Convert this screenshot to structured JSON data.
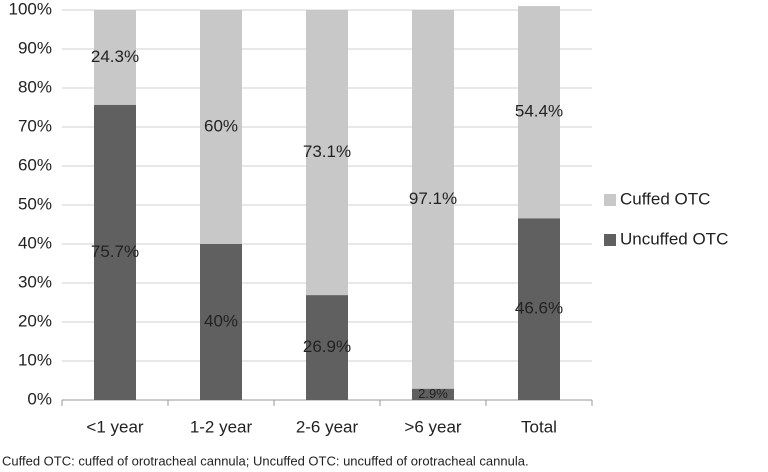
{
  "chart_data": {
    "type": "stacked_bar",
    "categories": [
      "<1 year",
      "1-2 year",
      "2-6 year",
      ">6 year",
      "Total"
    ],
    "series": [
      {
        "name": "Uncuffed OTC",
        "color": "#606060",
        "values": [
          75.7,
          40,
          26.9,
          2.9,
          46.6
        ],
        "value_labels": [
          "75.7%",
          "40%",
          "26.9%",
          "2.9%",
          "46.6%"
        ]
      },
      {
        "name": "Cuffed OTC",
        "color": "#c8c8c8",
        "values": [
          24.3,
          60,
          73.1,
          97.1,
          54.4
        ],
        "value_labels": [
          "24.3%",
          "60%",
          "73.1%",
          "97.1%",
          "54.4%"
        ]
      }
    ],
    "ylim": [
      0,
      100
    ],
    "yticks": [
      {
        "value": 0,
        "label": "0%"
      },
      {
        "value": 10,
        "label": "10%"
      },
      {
        "value": 20,
        "label": "20%"
      },
      {
        "value": 30,
        "label": "30%"
      },
      {
        "value": 40,
        "label": "40%"
      },
      {
        "value": 50,
        "label": "50%"
      },
      {
        "value": 60,
        "label": "60%"
      },
      {
        "value": 70,
        "label": "70%"
      },
      {
        "value": 80,
        "label": "80%"
      },
      {
        "value": 90,
        "label": "90%"
      },
      {
        "value": 100,
        "label": "100%"
      }
    ],
    "grid": true,
    "legend": "right",
    "caption": "Cuffed OTC: cuffed of orotracheal cannula; Uncuffed OTC: uncuffed of orotracheal cannula."
  }
}
